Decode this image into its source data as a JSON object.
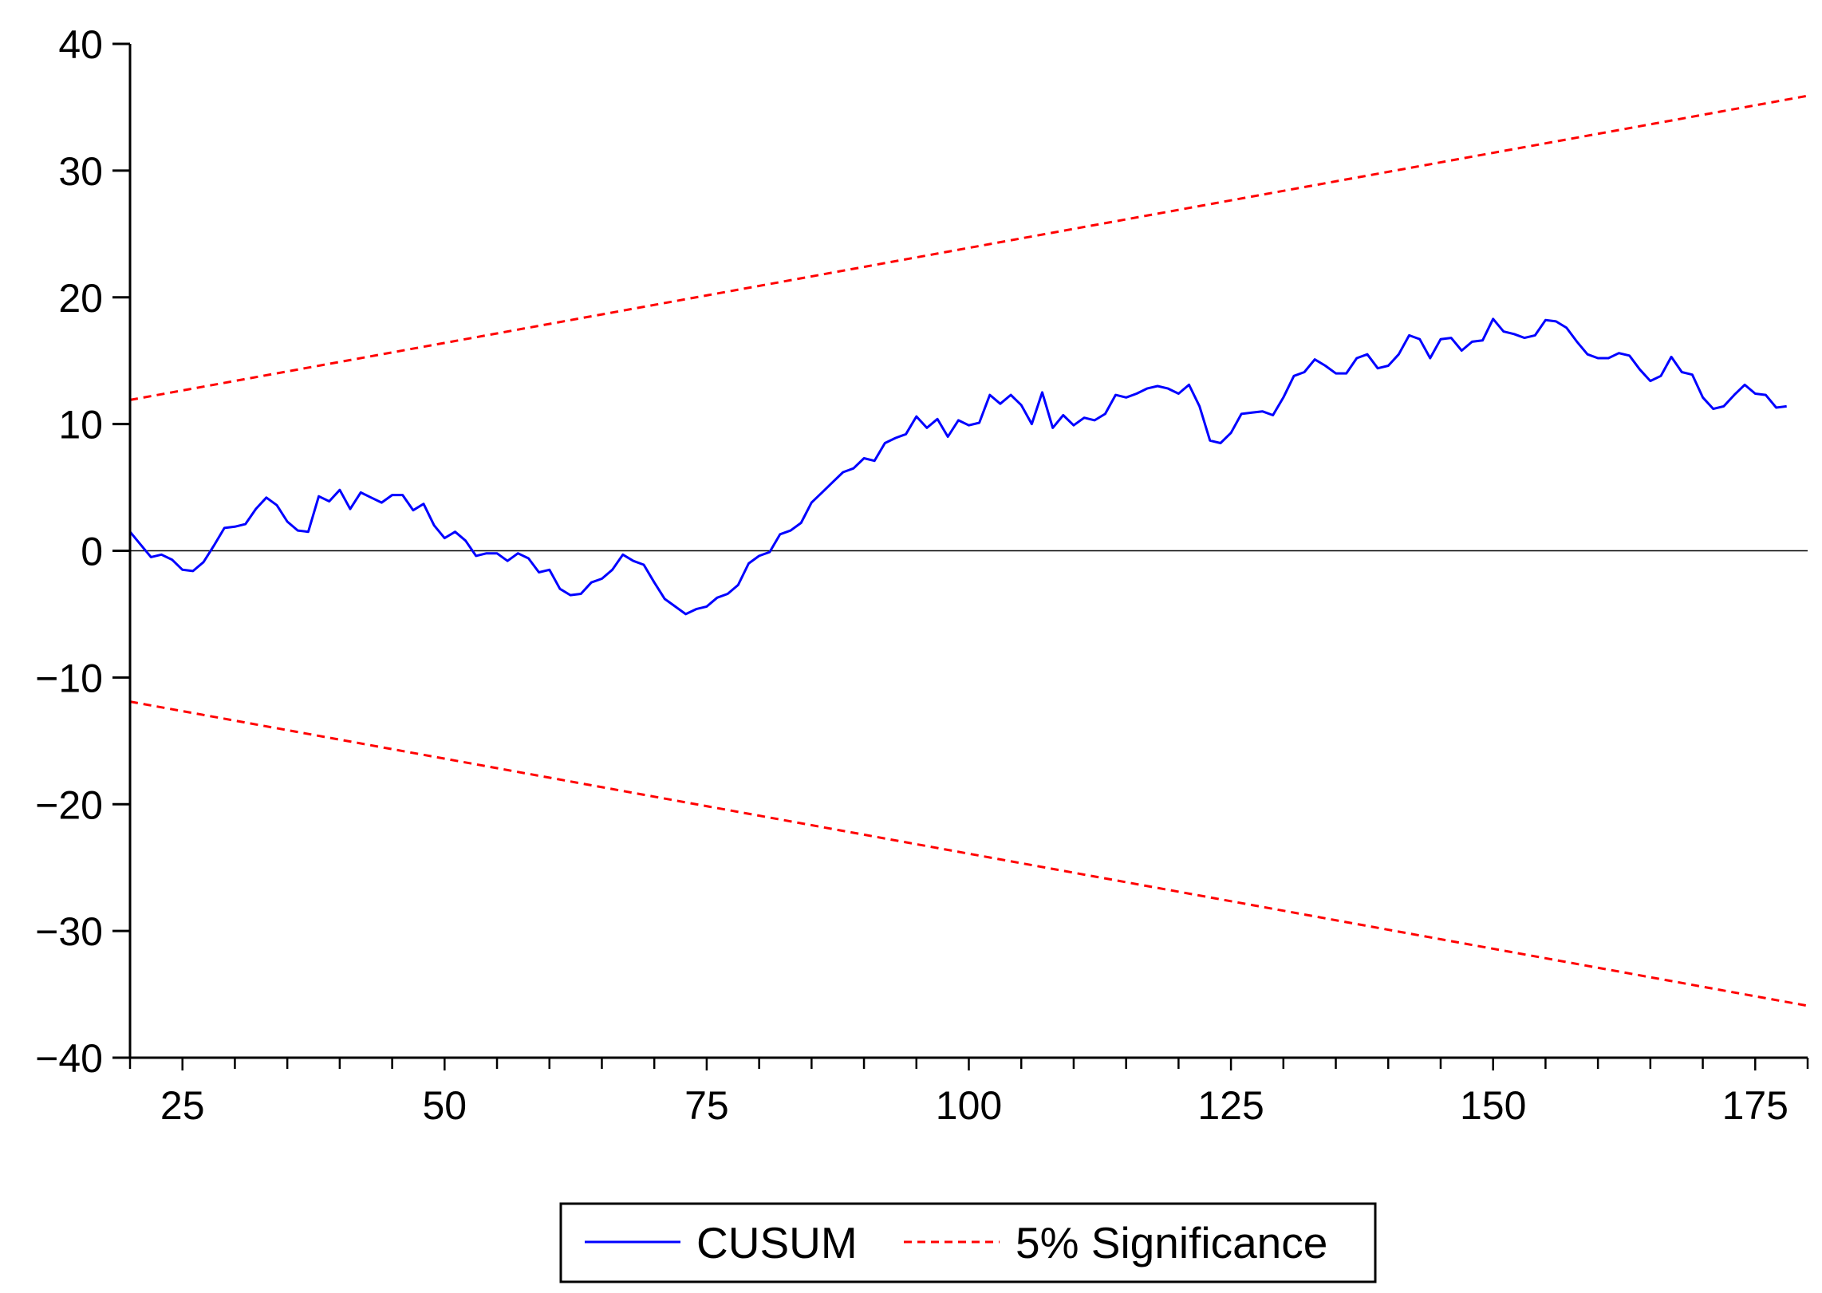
{
  "chart_data": {
    "type": "line",
    "title": "",
    "xlabel": "",
    "ylabel": "",
    "xlim": [
      20,
      180
    ],
    "ylim": [
      -40,
      40
    ],
    "x_ticks": [
      25,
      50,
      75,
      100,
      125,
      150,
      175
    ],
    "y_ticks": [
      40,
      30,
      20,
      10,
      0,
      -10,
      -20,
      -30,
      -40
    ],
    "x_tick_labels": [
      "25",
      "50",
      "75",
      "100",
      "125",
      "150",
      "175"
    ],
    "y_tick_labels": [
      "40",
      "30",
      "20",
      "10",
      "0",
      "−10",
      "−20",
      "−30",
      "−40"
    ],
    "zero_line": true,
    "grid": false,
    "legend_position": "bottom-center",
    "colors": {
      "cusum": "#0000ff",
      "significance": "#ff0000",
      "axis": "#000000"
    },
    "series": [
      {
        "name": "CUSUM",
        "style": "solid",
        "x_start": 20,
        "values": [
          1.5,
          0.5,
          -0.5,
          -0.3,
          -0.7,
          -1.5,
          -1.6,
          -0.9,
          0.4,
          1.8,
          1.9,
          2.1,
          3.3,
          4.2,
          3.6,
          2.3,
          1.6,
          1.5,
          4.3,
          3.9,
          4.8,
          3.3,
          4.6,
          4.2,
          3.8,
          4.4,
          4.4,
          3.2,
          3.7,
          2.0,
          1.0,
          1.5,
          0.8,
          -0.4,
          -0.2,
          -0.2,
          -0.8,
          -0.2,
          -0.6,
          -1.7,
          -1.5,
          -3.0,
          -3.5,
          -3.4,
          -2.5,
          -2.2,
          -1.5,
          -0.3,
          -0.8,
          -1.1,
          -2.5,
          -3.8,
          -4.4,
          -5.0,
          -4.6,
          -4.4,
          -3.7,
          -3.4,
          -2.7,
          -1.0,
          -0.4,
          -0.1,
          1.3,
          1.6,
          2.2,
          3.8,
          4.6,
          5.4,
          6.2,
          6.5,
          7.3,
          7.1,
          8.5,
          8.9,
          9.2,
          10.6,
          9.7,
          10.4,
          9.0,
          10.3,
          9.9,
          10.1,
          12.3,
          11.6,
          12.3,
          11.5,
          10.0,
          12.5,
          9.7,
          10.7,
          9.9,
          10.5,
          10.3,
          10.8,
          12.3,
          12.1,
          12.4,
          12.8,
          13.0,
          12.8,
          12.4,
          13.1,
          11.4,
          8.7,
          8.5,
          9.3,
          10.8,
          10.9,
          11.0,
          10.7,
          12.1,
          13.8,
          14.1,
          15.1,
          14.6,
          14.0,
          14.0,
          15.2,
          15.5,
          14.4,
          14.6,
          15.5,
          17.0,
          16.7,
          15.2,
          16.7,
          16.8,
          15.8,
          16.5,
          16.6,
          18.3,
          17.3,
          17.1,
          16.8,
          17.0,
          18.2,
          18.1,
          17.6,
          16.5,
          15.5,
          15.2,
          15.2,
          15.6,
          15.4,
          14.3,
          13.4,
          13.8,
          15.3,
          14.1,
          13.9,
          12.1,
          11.2,
          11.4,
          12.3,
          13.1,
          12.4,
          12.3,
          11.3,
          11.4
        ]
      },
      {
        "name": "5% Significance",
        "style": "dashed",
        "role": "upper",
        "x": [
          20,
          180
        ],
        "values": [
          11.9,
          35.9
        ]
      },
      {
        "name": "5% Significance",
        "style": "dashed",
        "role": "lower",
        "x": [
          20,
          180
        ],
        "values": [
          -11.9,
          -35.9
        ]
      }
    ],
    "legend": [
      "CUSUM",
      "5% Significance"
    ]
  }
}
